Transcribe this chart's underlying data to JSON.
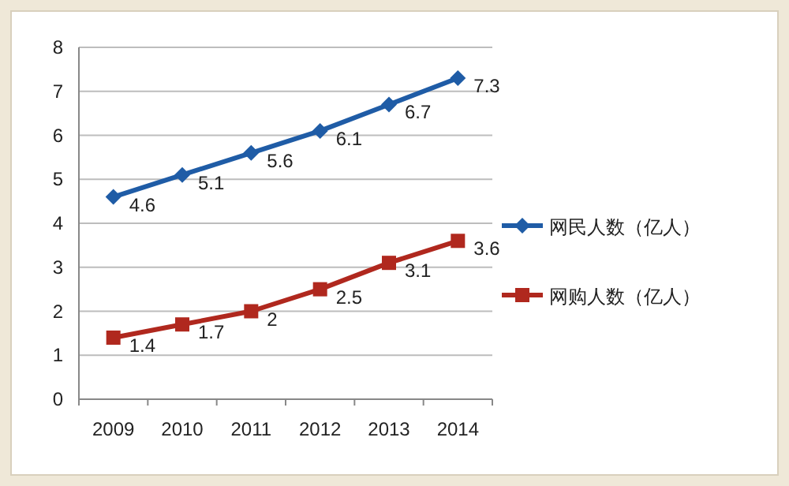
{
  "chart_data": {
    "type": "line",
    "categories": [
      "2009",
      "2010",
      "2011",
      "2012",
      "2013",
      "2014"
    ],
    "series": [
      {
        "name": "网民人数（亿人）",
        "color": "#1f5ca6",
        "marker": "diamond",
        "values": [
          4.6,
          5.1,
          5.6,
          6.1,
          6.7,
          7.3
        ]
      },
      {
        "name": "网购人数（亿人）",
        "color": "#b0281e",
        "marker": "square",
        "values": [
          1.4,
          1.7,
          2,
          2.5,
          3.1,
          3.6
        ]
      }
    ],
    "ylim": [
      0,
      8
    ],
    "yticks": [
      0,
      1,
      2,
      3,
      4,
      5,
      6,
      7,
      8
    ],
    "grid": "y",
    "legend": "right",
    "data_labels": true
  }
}
